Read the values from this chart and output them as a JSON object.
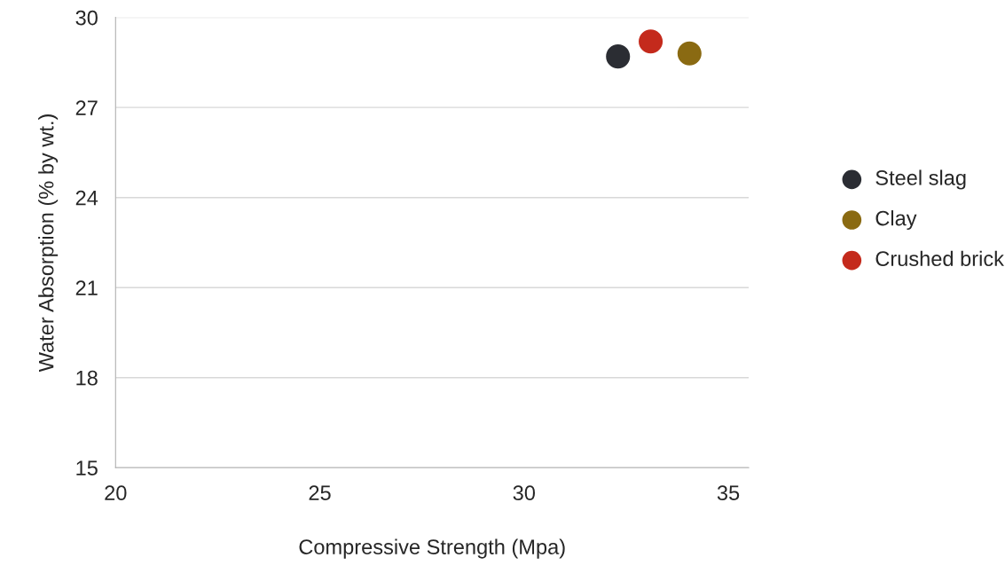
{
  "chart_data": {
    "type": "scatter",
    "xlabel": "Compressive Strength (Mpa)",
    "ylabel": "Water Absorption (% by wt.)",
    "series": [
      {
        "name": "Steel slag",
        "color": "#2b2d33",
        "x": [
          32.3
        ],
        "values": [
          28.7
        ]
      },
      {
        "name": "Clay",
        "color": "#8a6a12",
        "x": [
          34.05
        ],
        "values": [
          28.8
        ]
      },
      {
        "name": "Crushed brick",
        "color": "#c42a1c",
        "x": [
          33.1
        ],
        "values": [
          29.2
        ]
      }
    ],
    "xlim": [
      20,
      35.5
    ],
    "xticks": [
      20,
      25,
      30,
      35
    ],
    "ylim": [
      15,
      30
    ],
    "yticks": [
      15,
      18,
      21,
      24,
      27,
      30
    ],
    "grid": "y",
    "legend": "right",
    "marker": "circle"
  }
}
